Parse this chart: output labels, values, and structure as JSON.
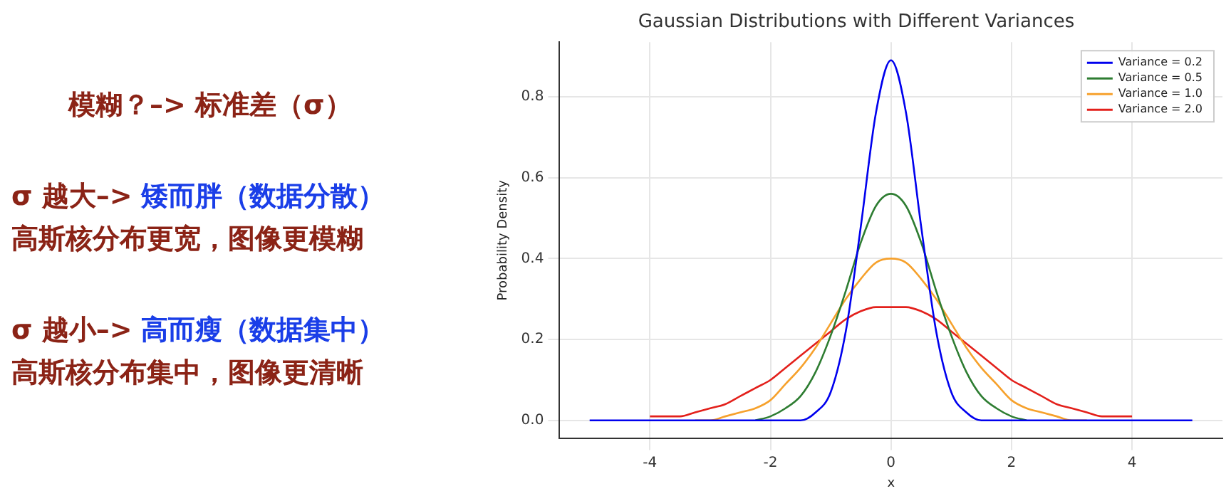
{
  "chart_data": {
    "type": "line",
    "title": "Gaussian Distributions with Different Variances",
    "xlabel": "x",
    "ylabel": "Probability Density",
    "annotations": [
      "模糊？–> 标准差（σ）",
      "σ 越大–>",
      "矮而胖（数据分散）",
      "高斯核分布更宽，图像更模糊",
      "σ 越小–>",
      "高而瘦（数据集中）",
      "高斯核分布集中，图像更清晰"
    ],
    "x": [
      -5,
      -4.75,
      -4.5,
      -4.25,
      -4,
      -3.75,
      -3.5,
      -3.25,
      -3,
      -2.75,
      -2.5,
      -2.25,
      -2,
      -1.75,
      -1.5,
      -1.25,
      -1,
      -0.75,
      -0.5,
      -0.25,
      0,
      0.25,
      0.5,
      0.75,
      1,
      1.25,
      1.5,
      1.75,
      2,
      2.25,
      2.5,
      2.75,
      3,
      3.25,
      3.5,
      3.75,
      4,
      4.25,
      4.5,
      4.75,
      5
    ],
    "series": [
      {
        "name": "Variance = 0.2",
        "color": "#0000ee",
        "values": [
          0,
          0,
          0,
          0,
          0,
          0,
          0,
          0,
          0,
          0,
          0,
          0,
          0,
          0,
          0,
          0.02,
          0.07,
          0.22,
          0.48,
          0.76,
          0.89,
          0.76,
          0.48,
          0.22,
          0.07,
          0.02,
          0,
          0,
          0,
          0,
          0,
          0,
          0,
          0,
          0,
          0,
          0,
          0,
          0,
          0,
          0
        ]
      },
      {
        "name": "Variance = 0.5",
        "color": "#2e7d32",
        "values": [
          null,
          null,
          null,
          null,
          null,
          null,
          null,
          null,
          null,
          null,
          null,
          0,
          0.01,
          0.03,
          0.06,
          0.12,
          0.21,
          0.32,
          0.44,
          0.53,
          0.56,
          0.53,
          0.44,
          0.32,
          0.21,
          0.12,
          0.06,
          0.03,
          0.01,
          0,
          null,
          null,
          null,
          null,
          null,
          null,
          null,
          null,
          null,
          null,
          null
        ]
      },
      {
        "name": "Variance = 1.0",
        "color": "#f6a12c",
        "values": [
          null,
          null,
          null,
          null,
          null,
          null,
          null,
          0,
          0,
          0.01,
          0.02,
          0.03,
          0.05,
          0.09,
          0.13,
          0.18,
          0.24,
          0.3,
          0.35,
          0.39,
          0.4,
          0.39,
          0.35,
          0.3,
          0.24,
          0.18,
          0.13,
          0.09,
          0.05,
          0.03,
          0.02,
          0.01,
          0,
          0,
          null,
          null,
          null,
          null,
          null,
          null,
          null
        ]
      },
      {
        "name": "Variance = 2.0",
        "color": "#e3201b",
        "values": [
          null,
          null,
          null,
          null,
          0.01,
          0.01,
          0.01,
          0.02,
          0.03,
          0.04,
          0.06,
          0.08,
          0.1,
          0.13,
          0.16,
          0.19,
          0.22,
          0.25,
          0.27,
          0.28,
          0.28,
          0.28,
          0.27,
          0.25,
          0.22,
          0.19,
          0.16,
          0.13,
          0.1,
          0.08,
          0.06,
          0.04,
          0.03,
          0.02,
          0.01,
          0.01,
          0.01,
          null,
          null,
          null,
          null
        ]
      }
    ],
    "xlim": [
      -5.5,
      5.5
    ],
    "xticks": [
      -4,
      -2,
      0,
      2,
      4
    ],
    "ylim": [
      -0.045,
      0.935
    ],
    "yticks": [
      {
        "value": 0,
        "label": "0.0"
      },
      {
        "value": 0.2,
        "label": "0.2"
      },
      {
        "value": 0.4,
        "label": "0.4"
      },
      {
        "value": 0.6,
        "label": "0.6"
      },
      {
        "value": 0.8,
        "label": "0.8"
      }
    ],
    "grid": true,
    "legend": "top right"
  }
}
